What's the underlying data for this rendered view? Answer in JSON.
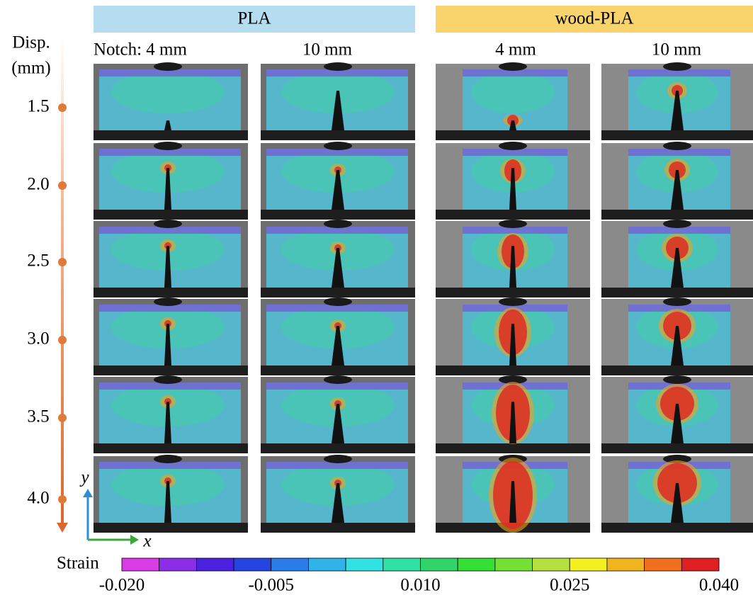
{
  "header": {
    "groups": [
      "PLA",
      "wood-PLA"
    ],
    "columns": [
      "Notch: 4 mm",
      "10 mm",
      "4 mm",
      "10 mm"
    ]
  },
  "disp_axis": {
    "title": [
      "Disp.",
      "(mm)"
    ],
    "labels": [
      "1.5",
      "2.0",
      "2.5",
      "3.0",
      "3.5",
      "4.0"
    ]
  },
  "axes": {
    "y": "y",
    "x": "x"
  },
  "colorbar": {
    "title": "Strain",
    "tick_labels": [
      "-0.020",
      "-0.005",
      "0.010",
      "0.025",
      "0.040"
    ],
    "colors": [
      "#d93be6",
      "#8c2ee8",
      "#4a22e0",
      "#2445e0",
      "#2a7de8",
      "#2fb3e8",
      "#30e2e2",
      "#30e0a4",
      "#30d468",
      "#34e034",
      "#74e034",
      "#b4e040",
      "#f2f020",
      "#f2b41e",
      "#f0701e",
      "#e02020"
    ]
  }
}
